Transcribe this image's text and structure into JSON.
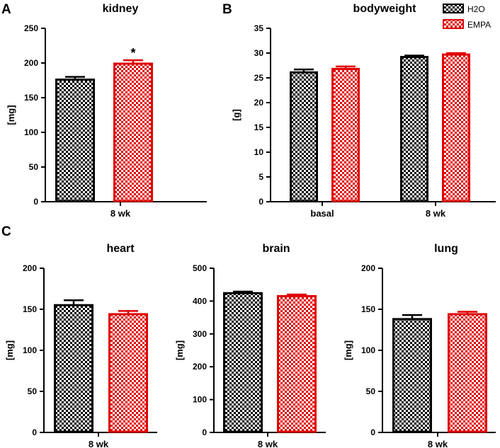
{
  "figure": {
    "colors": {
      "h2o": "#000000",
      "empa": "#e00000"
    },
    "legend": [
      {
        "key": "h2o",
        "label": "H2O"
      },
      {
        "key": "empa",
        "label": "EMPA"
      }
    ]
  },
  "chart_data": [
    {
      "id": "kidney",
      "panel_letter": "A",
      "type": "bar",
      "title": "kidney",
      "ylabel": "[mg]",
      "xlabel": "",
      "ylim": [
        0,
        250
      ],
      "yticks": [
        0,
        50,
        100,
        150,
        200,
        250
      ],
      "categories": [
        "8 wk"
      ],
      "series": [
        {
          "name": "H2O",
          "values": [
            176
          ],
          "errors": [
            4
          ]
        },
        {
          "name": "EMPA",
          "values": [
            199
          ],
          "errors": [
            5
          ]
        }
      ],
      "annotations": [
        {
          "text": "*",
          "category": 0,
          "series": 1
        }
      ]
    },
    {
      "id": "bodyweight",
      "panel_letter": "B",
      "type": "bar",
      "title": "bodyweight",
      "ylabel": "[g]",
      "xlabel": "",
      "ylim": [
        0,
        35
      ],
      "yticks": [
        0,
        5,
        10,
        15,
        20,
        25,
        30,
        35
      ],
      "categories": [
        "basal",
        "8 wk"
      ],
      "series": [
        {
          "name": "H2O",
          "values": [
            26.1,
            29.2
          ],
          "errors": [
            0.6,
            0.3
          ]
        },
        {
          "name": "EMPA",
          "values": [
            26.8,
            29.7
          ],
          "errors": [
            0.5,
            0.3
          ]
        }
      ],
      "annotations": []
    },
    {
      "id": "heart",
      "panel_letter": "C",
      "type": "bar",
      "title": "heart",
      "ylabel": "[mg]",
      "xlabel": "",
      "ylim": [
        0,
        200
      ],
      "yticks": [
        0,
        50,
        100,
        150,
        200
      ],
      "categories": [
        "8 wk"
      ],
      "series": [
        {
          "name": "H2O",
          "values": [
            155
          ],
          "errors": [
            6
          ]
        },
        {
          "name": "EMPA",
          "values": [
            144
          ],
          "errors": [
            4
          ]
        }
      ],
      "annotations": []
    },
    {
      "id": "brain",
      "panel_letter": "",
      "type": "bar",
      "title": "brain",
      "ylabel": "[mg]",
      "xlabel": "",
      "ylim": [
        0,
        500
      ],
      "yticks": [
        0,
        100,
        200,
        300,
        400,
        500
      ],
      "categories": [
        "8 wk"
      ],
      "series": [
        {
          "name": "H2O",
          "values": [
            424
          ],
          "errors": [
            5
          ]
        },
        {
          "name": "EMPA",
          "values": [
            415
          ],
          "errors": [
            5
          ]
        }
      ],
      "annotations": []
    },
    {
      "id": "lung",
      "panel_letter": "",
      "type": "bar",
      "title": "lung",
      "ylabel": "[mg]",
      "xlabel": "",
      "ylim": [
        0,
        200
      ],
      "yticks": [
        0,
        50,
        100,
        150,
        200
      ],
      "categories": [
        "8 wk"
      ],
      "series": [
        {
          "name": "H2O",
          "values": [
            138
          ],
          "errors": [
            5
          ]
        },
        {
          "name": "EMPA",
          "values": [
            144
          ],
          "errors": [
            3
          ]
        }
      ],
      "annotations": []
    }
  ]
}
